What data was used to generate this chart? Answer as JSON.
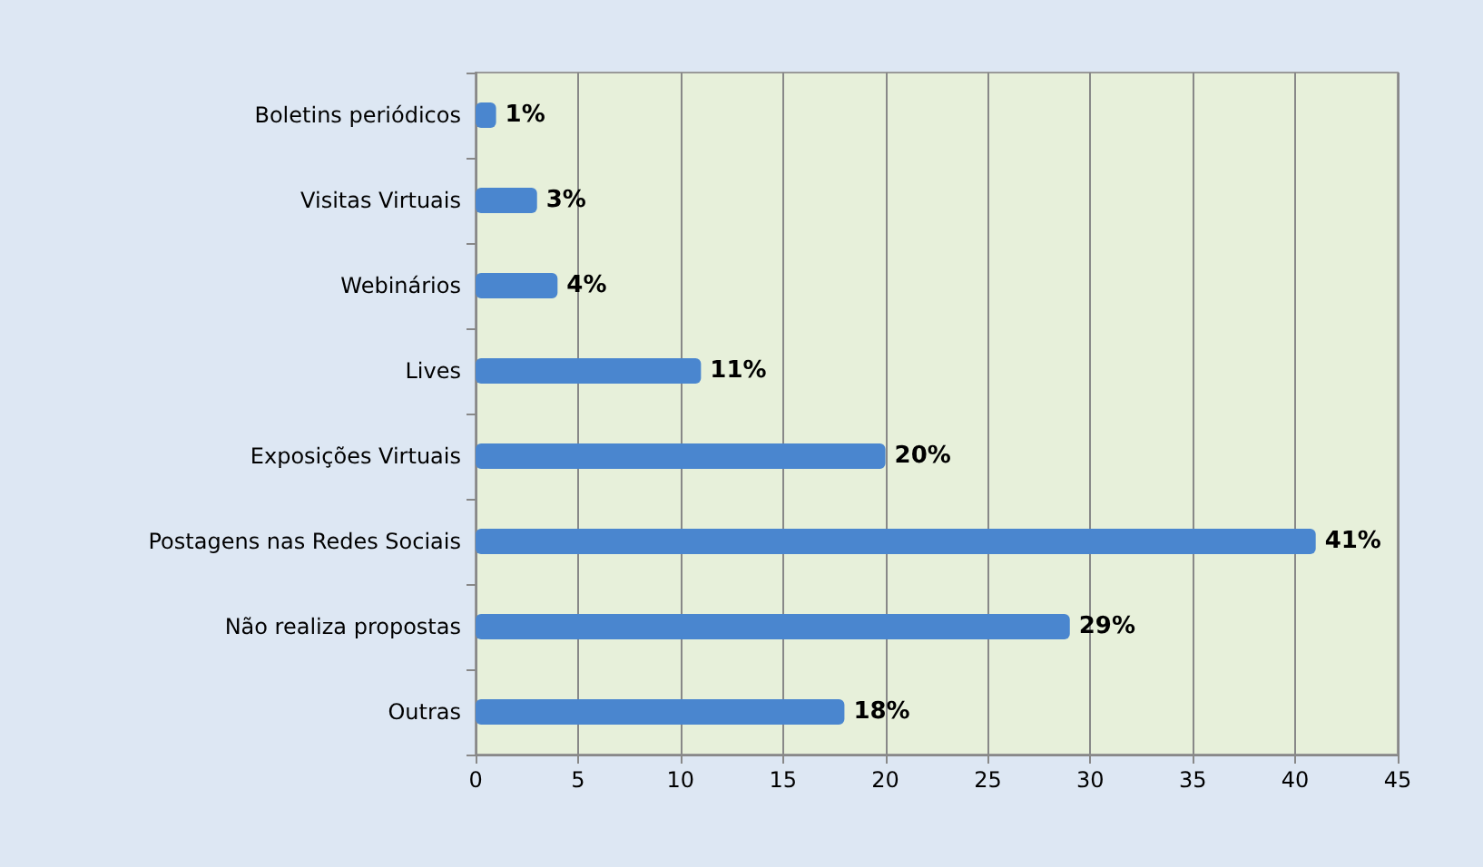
{
  "chart_data": {
    "type": "bar",
    "orientation": "horizontal",
    "categories": [
      "Boletins periódicos",
      "Visitas Virtuais",
      "Webinários",
      "Lives",
      "Exposições Virtuais",
      "Postagens nas Redes Sociais",
      "Não realiza propostas",
      "Outras"
    ],
    "values": [
      1,
      3,
      4,
      11,
      20,
      41,
      29,
      18
    ],
    "value_labels": [
      "1%",
      "3%",
      "4%",
      "11%",
      "20%",
      "41%",
      "29%",
      "18%"
    ],
    "color": "#4a86cf",
    "xlim": [
      0,
      45
    ],
    "xticks": [
      0,
      5,
      10,
      15,
      20,
      25,
      30,
      35,
      40,
      45
    ],
    "grid": "x"
  }
}
